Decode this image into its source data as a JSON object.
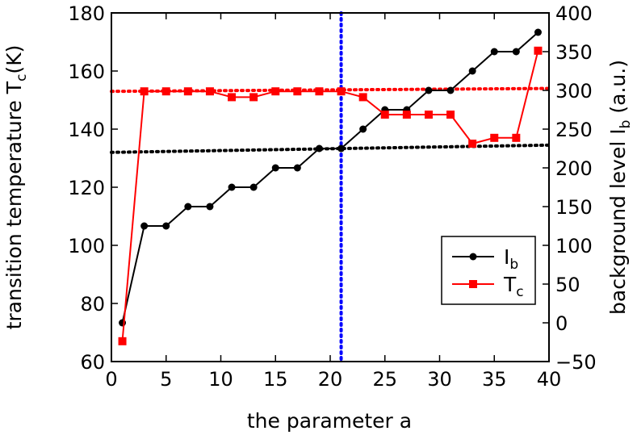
{
  "chart_data": {
    "type": "line",
    "xlabel": "the parameter a",
    "ylabel_left": {
      "base": "transition temperature T",
      "sub": "c",
      "suffix": "(K)"
    },
    "ylabel_right": {
      "base": "background level I",
      "sub": "b",
      "suffix": " (a.u.)"
    },
    "xlim": [
      0,
      40
    ],
    "ylim_left": [
      60,
      180
    ],
    "ylim_right": [
      -50,
      400
    ],
    "x_ticks": [
      0,
      5,
      10,
      15,
      20,
      25,
      30,
      35,
      40
    ],
    "y_left_ticks": [
      60,
      80,
      100,
      120,
      140,
      160,
      180
    ],
    "y_right_ticks": [
      -50,
      0,
      50,
      100,
      150,
      200,
      250,
      300,
      350,
      400
    ],
    "grid": false,
    "legend_position": "center-right",
    "series": [
      {
        "name": "Ib",
        "legend_base": "I",
        "legend_sub": "b",
        "axis": "right",
        "color": "#000000",
        "marker": "circle",
        "x": [
          1,
          3,
          5,
          7,
          9,
          11,
          13,
          15,
          17,
          19,
          21,
          23,
          25,
          27,
          29,
          31,
          33,
          35,
          37,
          39
        ],
        "y": [
          0,
          125,
          125,
          150,
          150,
          175,
          175,
          200,
          200,
          225,
          225,
          250,
          275,
          275,
          300,
          300,
          325,
          350,
          350,
          375
        ]
      },
      {
        "name": "Tc",
        "legend_base": "T",
        "legend_sub": "c",
        "axis": "left",
        "color": "#ff0000",
        "marker": "square",
        "x": [
          1,
          3,
          5,
          7,
          9,
          11,
          13,
          15,
          17,
          19,
          21,
          23,
          25,
          27,
          29,
          31,
          33,
          35,
          37,
          39
        ],
        "y": [
          67,
          153,
          153,
          153,
          153,
          151,
          151,
          153,
          153,
          153,
          153,
          151,
          145,
          145,
          145,
          145,
          135,
          137,
          137,
          167
        ]
      }
    ],
    "reference_lines": [
      {
        "name": "tc-trend-dotted",
        "axis": "left",
        "color": "#ff0000",
        "style": "dotted",
        "x": [
          0,
          40
        ],
        "y": [
          153,
          154
        ]
      },
      {
        "name": "ib-trend-dotted",
        "axis": "left",
        "color": "#000000",
        "style": "dotted",
        "x": [
          0,
          40
        ],
        "y": [
          132,
          134.5
        ]
      },
      {
        "name": "a-marker-dotted",
        "orientation": "vertical",
        "color": "#0000ff",
        "style": "dotted",
        "x": 21
      }
    ]
  }
}
